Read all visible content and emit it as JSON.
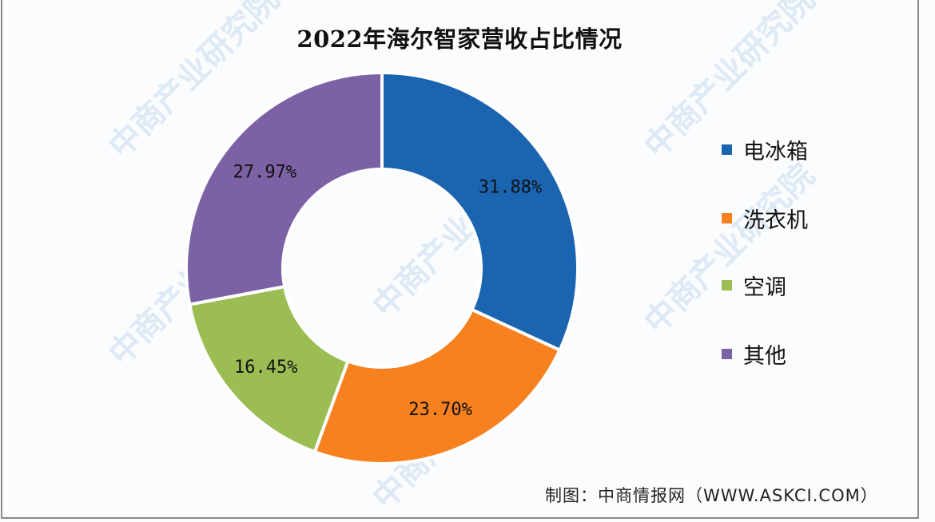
{
  "title": "2022年海尔智家营收占比情况",
  "source": "制图：中商情报网（WWW.ASKCI.COM）",
  "watermark": "中商产业研究院",
  "legend": {
    "items": [
      {
        "label": "电冰箱",
        "color": "#1a64b0"
      },
      {
        "label": "洗衣机",
        "color": "#f7801f"
      },
      {
        "label": "空调",
        "color": "#9cbd54"
      },
      {
        "label": "其他",
        "color": "#7c62a5"
      }
    ]
  },
  "chart_data": {
    "type": "pie",
    "subtype": "donut",
    "title": "2022年海尔智家营收占比情况",
    "categories": [
      "电冰箱",
      "洗衣机",
      "空调",
      "其他"
    ],
    "values": [
      31.88,
      23.7,
      16.45,
      27.97
    ],
    "labels": [
      "31.88%",
      "23.70%",
      "16.45%",
      "27.97%"
    ],
    "colors": [
      "#1a64b0",
      "#f7801f",
      "#9cbd54",
      "#7c62a5"
    ],
    "unit": "%",
    "start_angle": "12 o'clock, clockwise",
    "legend_position": "right",
    "source": "制图：中商情报网（WWW.ASKCI.COM）"
  }
}
